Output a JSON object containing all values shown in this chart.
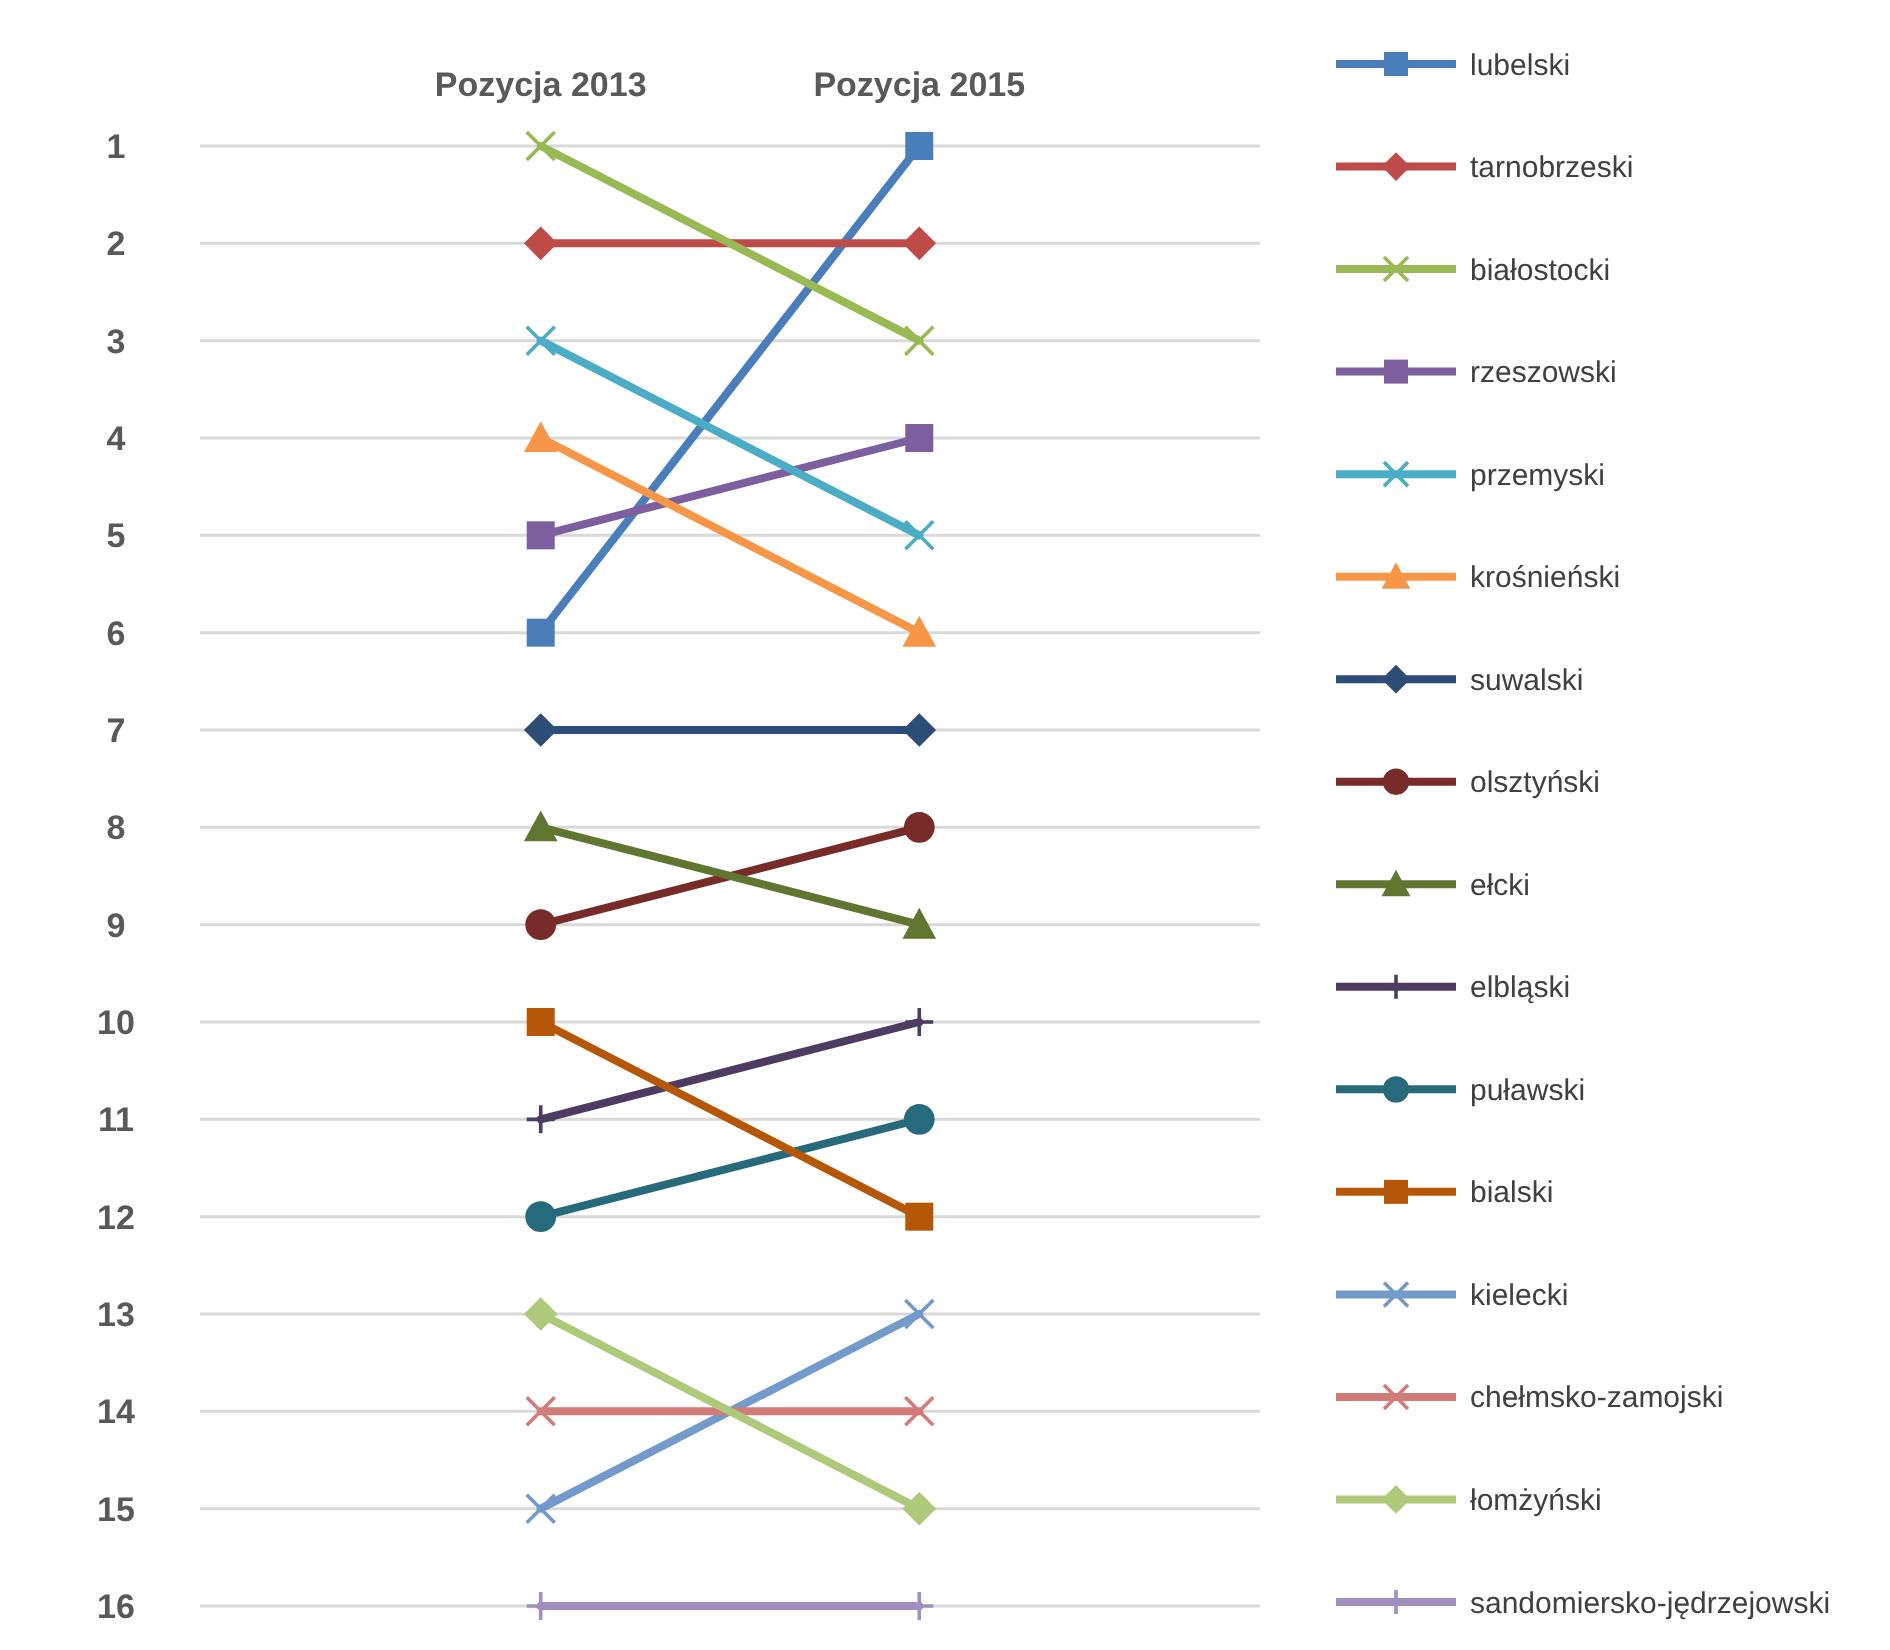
{
  "chart_data": {
    "type": "line",
    "categories": [
      "Pozycja 2013",
      "Pozycja 2015"
    ],
    "ylim": [
      16,
      1
    ],
    "yticks": [
      1,
      2,
      3,
      4,
      5,
      6,
      7,
      8,
      9,
      10,
      11,
      12,
      13,
      14,
      15,
      16
    ],
    "grid": "y",
    "legend": "right",
    "series": [
      {
        "name": "lubelski",
        "color": "#4a7ebb",
        "marker": "square",
        "values": [
          6,
          1
        ]
      },
      {
        "name": "tarnobrzeski",
        "color": "#be4b48",
        "marker": "diamond",
        "values": [
          2,
          2
        ]
      },
      {
        "name": "białostocki",
        "color": "#98b954",
        "marker": "cross",
        "values": [
          1,
          3
        ]
      },
      {
        "name": "rzeszowski",
        "color": "#7d5fa0",
        "marker": "square",
        "values": [
          5,
          4
        ]
      },
      {
        "name": "przemyski",
        "color": "#4bacc6",
        "marker": "cross",
        "values": [
          3,
          5
        ]
      },
      {
        "name": "krośnieński",
        "color": "#f79646",
        "marker": "triangle",
        "values": [
          4,
          6
        ]
      },
      {
        "name": "suwalski",
        "color": "#2c4d75",
        "marker": "diamond",
        "values": [
          7,
          7
        ]
      },
      {
        "name": "olsztyński",
        "color": "#772c2a",
        "marker": "circle",
        "values": [
          9,
          8
        ]
      },
      {
        "name": "ełcki",
        "color": "#5f7530",
        "marker": "triangle",
        "values": [
          8,
          9
        ]
      },
      {
        "name": "elbląski",
        "color": "#4d3b62",
        "marker": "plus",
        "values": [
          11,
          10
        ]
      },
      {
        "name": "puławski",
        "color": "#276a7c",
        "marker": "circle",
        "values": [
          12,
          11
        ]
      },
      {
        "name": "bialski",
        "color": "#b65708",
        "marker": "square",
        "values": [
          10,
          12
        ]
      },
      {
        "name": "kielecki",
        "color": "#729aca",
        "marker": "cross",
        "values": [
          15,
          13
        ]
      },
      {
        "name": "chełmsko-zamojski",
        "color": "#d37b79",
        "marker": "cross",
        "values": [
          14,
          14
        ]
      },
      {
        "name": "łomżyński",
        "color": "#afc97a",
        "marker": "diamond",
        "values": [
          13,
          15
        ]
      },
      {
        "name": "sandomiersko-jędrzejowski",
        "color": "#a18fc1",
        "marker": "plus",
        "values": [
          16,
          16
        ]
      }
    ]
  }
}
